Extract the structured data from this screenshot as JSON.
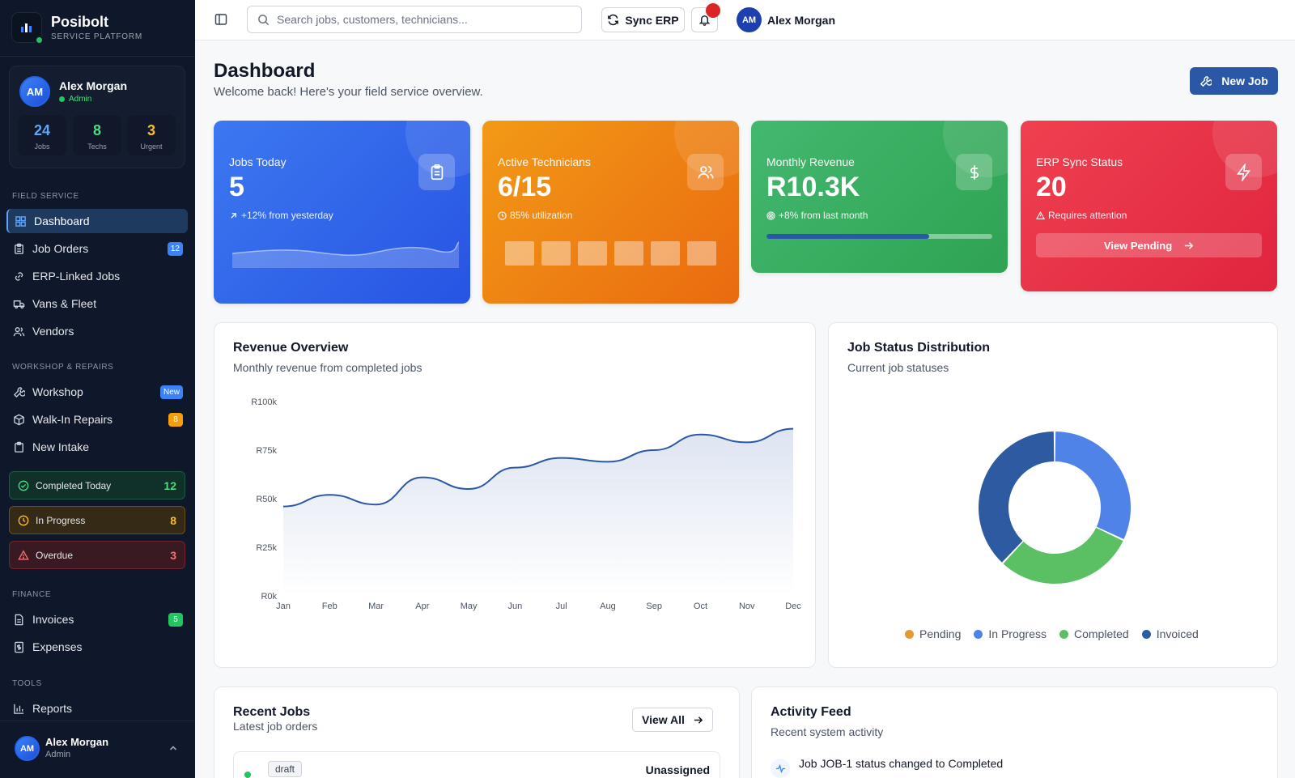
{
  "brand": {
    "name": "Posibolt",
    "subtitle": "SERVICE PLATFORM"
  },
  "user": {
    "initials": "AM",
    "name": "Alex Morgan",
    "role": "Admin"
  },
  "user_stats": [
    {
      "value": "24",
      "label": "Jobs",
      "color": "#60a5fa"
    },
    {
      "value": "8",
      "label": "Techs",
      "color": "#4ade80"
    },
    {
      "value": "3",
      "label": "Urgent",
      "color": "#fbbf24"
    }
  ],
  "sections": {
    "field_service": "FIELD SERVICE",
    "workshop": "WORKSHOP & REPAIRS",
    "finance": "FINANCE",
    "tools": "TOOLS"
  },
  "nav": {
    "dashboard": "Dashboard",
    "job_orders": "Job Orders",
    "job_orders_badge": "12",
    "erp_linked": "ERP-Linked Jobs",
    "vans": "Vans & Fleet",
    "vendors": "Vendors",
    "workshop": "Workshop",
    "workshop_badge": "New",
    "walkin": "Walk-In Repairs",
    "walkin_badge": "8",
    "intake": "New Intake",
    "invoices": "Invoices",
    "invoices_badge": "5",
    "expenses": "Expenses",
    "reports": "Reports"
  },
  "status_pills": [
    {
      "label": "Completed Today",
      "count": "12",
      "color": "#4ade80"
    },
    {
      "label": "In Progress",
      "count": "8",
      "color": "#fbbf24"
    },
    {
      "label": "Overdue",
      "count": "3",
      "color": "#f87171"
    }
  ],
  "topbar": {
    "search_placeholder": "Search jobs, customers, technicians...",
    "sync_label": "Sync ERP",
    "user_initials": "AM",
    "user_name": "Alex Morgan"
  },
  "page": {
    "title": "Dashboard",
    "subtitle": "Welcome back! Here's your field service overview.",
    "new_job_label": "New Job"
  },
  "kpis": {
    "jobs_today": {
      "label": "Jobs Today",
      "value": "5",
      "note": "+12% from yesterday"
    },
    "technicians": {
      "label": "Active Technicians",
      "value": "6/15",
      "note": "85% utilization"
    },
    "revenue": {
      "label": "Monthly Revenue",
      "value": "R10.3K",
      "note": "+8% from last month",
      "progress": 0.72
    },
    "erp": {
      "label": "ERP Sync Status",
      "value": "20",
      "note": "Requires attention",
      "button": "View Pending"
    }
  },
  "revenue_panel": {
    "title": "Revenue Overview",
    "subtitle": "Monthly revenue from completed jobs"
  },
  "status_panel": {
    "title": "Job Status Distribution",
    "subtitle": "Current job statuses"
  },
  "recent_jobs": {
    "title": "Recent Jobs",
    "subtitle": "Latest job orders",
    "view_all": "View All",
    "rows": [
      {
        "status": "draft",
        "assignee": "Unassigned"
      }
    ]
  },
  "activity": {
    "title": "Activity Feed",
    "subtitle": "Recent system activity",
    "items": [
      {
        "text": "Job JOB-1 status changed to Completed"
      }
    ]
  },
  "chart_data": [
    {
      "type": "area",
      "x": [
        "Jan",
        "Feb",
        "Mar",
        "Apr",
        "May",
        "Jun",
        "Jul",
        "Aug",
        "Sep",
        "Oct",
        "Nov",
        "Dec"
      ],
      "series": [
        {
          "values": [
            46,
            52,
            47,
            61,
            55,
            66,
            71,
            69,
            75,
            83,
            79,
            86
          ],
          "color": "#2b58a6"
        }
      ],
      "y_ticks": [
        "R0k",
        "R25k",
        "R50k",
        "R75k",
        "R100k"
      ],
      "ylim": [
        0,
        100
      ],
      "grid": false
    },
    {
      "type": "pie",
      "donut": true,
      "slices": [
        {
          "label": "Pending",
          "value": 0,
          "color": "#e39b2d"
        },
        {
          "label": "In Progress",
          "value": 32,
          "color": "#4f83e8"
        },
        {
          "label": "Completed",
          "value": 30,
          "color": "#5bbf63"
        },
        {
          "label": "Invoiced",
          "value": 38,
          "color": "#2d5aa0"
        }
      ],
      "legend": "bottom"
    }
  ]
}
